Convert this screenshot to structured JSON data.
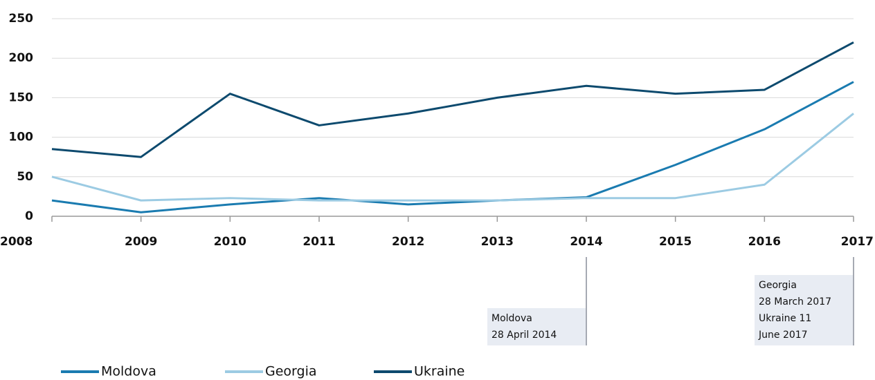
{
  "chart_data": {
    "type": "line",
    "x": [
      2008,
      2009,
      2010,
      2011,
      2012,
      2013,
      2014,
      2015,
      2016,
      2017
    ],
    "xlim": [
      2008,
      2017
    ],
    "xticks": [
      2008,
      2009,
      2010,
      2011,
      2012,
      2013,
      2014,
      2015,
      2016,
      2017
    ],
    "ylim": [
      0,
      250
    ],
    "yticks": [
      0,
      50,
      100,
      150,
      200,
      250
    ],
    "grid": true,
    "series": [
      {
        "name": "Moldova",
        "color": "#1a7bb0",
        "values": [
          20,
          5,
          15,
          23,
          15,
          20,
          24,
          65,
          110,
          170
        ]
      },
      {
        "name": "Georgia",
        "color": "#9ccbe3",
        "values": [
          50,
          20,
          23,
          20,
          20,
          20,
          23,
          23,
          40,
          130
        ]
      },
      {
        "name": "Ukraine",
        "color": "#0d4a6e",
        "values": [
          85,
          75,
          155,
          115,
          130,
          150,
          165,
          155,
          160,
          220
        ]
      }
    ],
    "annotations": [
      {
        "x": 2014,
        "lines": [
          "Moldova",
          "28 April 2014"
        ]
      },
      {
        "x": 2017,
        "lines": [
          "Georgia",
          "28 March 2017",
          "Ukraine 11",
          "June 2017"
        ]
      }
    ]
  }
}
